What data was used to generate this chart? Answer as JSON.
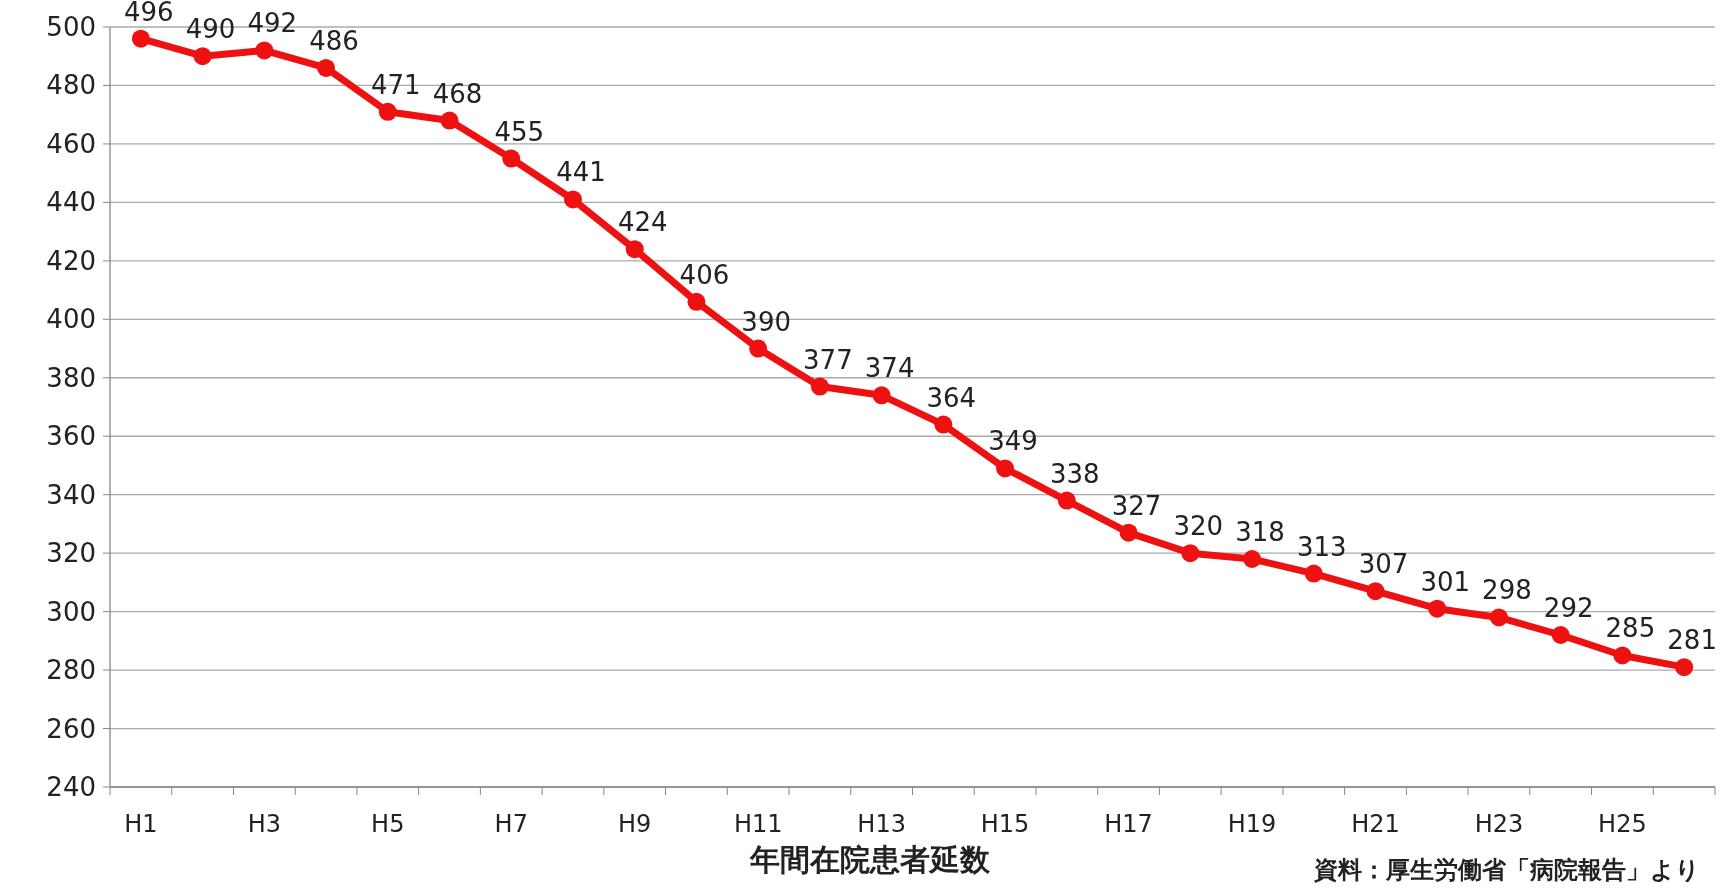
{
  "chart_data": {
    "type": "line",
    "title": "年間在院患者延数",
    "annotations": [
      "資料：厚生労働省「病院報告」より"
    ],
    "categories": [
      "H1",
      null,
      "H3",
      null,
      "H5",
      null,
      "H7",
      null,
      "H9",
      null,
      "H11",
      null,
      "H13",
      null,
      "H15",
      null,
      "H17",
      null,
      "H19",
      null,
      "H21",
      null,
      "H23",
      null,
      "H25",
      null
    ],
    "series": [
      {
        "color": "#ee1111",
        "values": [
          496,
          490,
          492,
          486,
          471,
          468,
          455,
          441,
          424,
          406,
          390,
          377,
          374,
          364,
          349,
          338,
          327,
          320,
          318,
          313,
          307,
          301,
          298,
          292,
          285,
          281
        ]
      }
    ],
    "ylim": [
      240,
      500
    ],
    "yticks": [
      240,
      260,
      280,
      300,
      320,
      340,
      360,
      380,
      400,
      420,
      440,
      460,
      480,
      500
    ],
    "grid": "y",
    "marker": "circle",
    "line_style": "solid",
    "data_labels": true
  }
}
